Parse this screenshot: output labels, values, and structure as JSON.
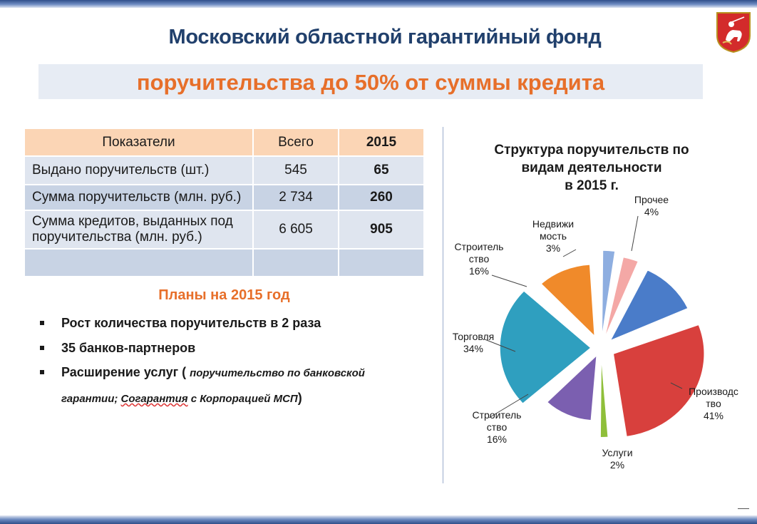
{
  "title": "Московский областной гарантийный фонд",
  "subtitle": "поручительства до 50%  от суммы кредита",
  "emblem": "moscow-region-coat-of-arms",
  "table": {
    "headers": [
      "Показатели",
      "Всего",
      "2015"
    ],
    "rows": [
      {
        "label": "Выдано поручительств (шт.)",
        "total": "545",
        "year": "65"
      },
      {
        "label": "Сумма поручительств (млн. руб.)",
        "total": "2 734",
        "year": "260"
      },
      {
        "label": "Сумма кредитов, выданных под поручительства (млн. руб.)",
        "total": "6 605",
        "year": "905"
      },
      {
        "label": "",
        "total": "",
        "year": ""
      }
    ]
  },
  "plans": {
    "title": "Планы на 2015 год",
    "items": [
      "Рост количества поручительств в 2 раза",
      "35 банков-партнеров"
    ],
    "item3_main": "Расширение услуг (",
    "item3_note_a": "поручительство по банковской гарантии; ",
    "item3_note_b": "Согарантия",
    "item3_note_c": " с Корпорацией МСП",
    "item3_close": ")"
  },
  "chart_data": {
    "type": "pie",
    "title": "Структура поручительств по видам деятельности в 2015 г.",
    "title_lines": [
      "Структура поручительств по",
      "видам деятельности",
      "в 2015 г."
    ],
    "slices": [
      {
        "name": "Прочее",
        "value": 4,
        "label": "4%",
        "color": "#f4a8a6"
      },
      {
        "name": "Строительство",
        "value": 16,
        "label": "16%",
        "color": "#4a7cc9"
      },
      {
        "name": "Производство",
        "value": 41,
        "label": "41%",
        "color": "#d8403d"
      },
      {
        "name": "Услуги",
        "value": 2,
        "label": "2%",
        "color": "#8fbf3a"
      },
      {
        "name": "Строительство",
        "value": 16,
        "label": "16%",
        "color": "#7b5fb0"
      },
      {
        "name": "Торговля",
        "value": 34,
        "label": "34%",
        "color": "#2f9fbf"
      },
      {
        "name": "Строительство",
        "value": 16,
        "label": "16%",
        "color": "#f08a2a"
      },
      {
        "name": "Недвижимость",
        "value": 3,
        "label": "3%",
        "color": "#8eaee0"
      }
    ],
    "label_texts": {
      "prochee": [
        "Прочее",
        "4%"
      ],
      "nedv": [
        "Недвижи",
        "мость",
        "3%"
      ],
      "stroy_top": [
        "Строитель",
        "ство",
        "16%"
      ],
      "torg": [
        "Торговля",
        "34%"
      ],
      "stroy_bottom": [
        "Строитель",
        "ство",
        "16%"
      ],
      "uslugi": [
        "Услуги",
        "2%"
      ],
      "proizv": [
        "Производс",
        "тво",
        "41%"
      ]
    }
  }
}
